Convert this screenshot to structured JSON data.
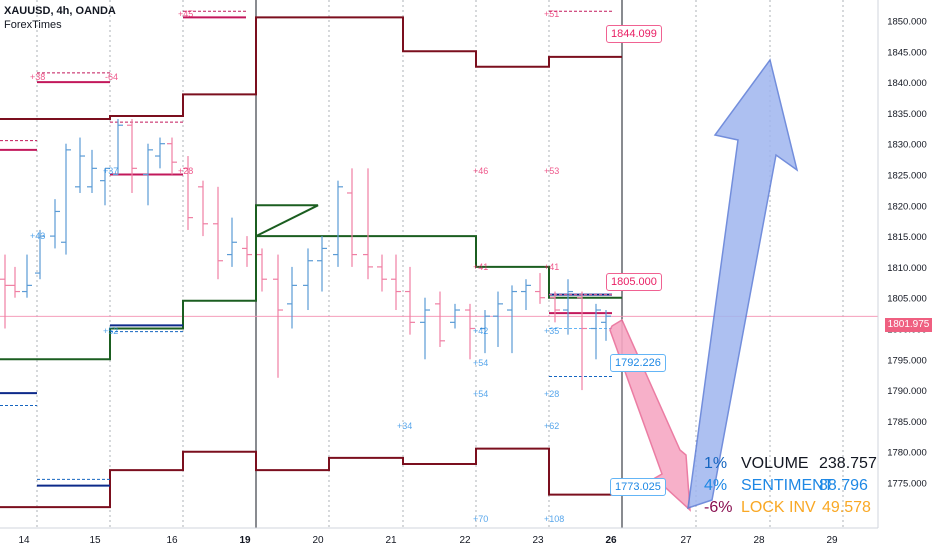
{
  "header": {
    "symbol_line": "XAUUSD, 4h, OANDA",
    "author": "ForexTimes"
  },
  "price_axis": {
    "ticks": [
      "1850.000",
      "1845.000",
      "1840.000",
      "1835.000",
      "1830.000",
      "1825.000",
      "1820.000",
      "1815.000",
      "1810.000",
      "1805.000",
      "1800.000",
      "1795.000",
      "1790.000",
      "1785.000",
      "1780.000",
      "1775.000"
    ],
    "current": "1801.975"
  },
  "time_axis": {
    "ticks": [
      "14",
      "15",
      "16",
      "19",
      "20",
      "21",
      "22",
      "23",
      "26",
      "27",
      "28",
      "29"
    ]
  },
  "tags": {
    "t1844": "1844.099",
    "t1805": "1805.000",
    "t1792": "1792.226",
    "t1773": "1773.025"
  },
  "stats": [
    {
      "pct": "1%",
      "label": "VOLUME",
      "value": "238.757",
      "pct_color": "#1565c0",
      "label_color": "#131722",
      "value_color": "#131722"
    },
    {
      "pct": "4%",
      "label": "SENTIMENT",
      "value": "88.796",
      "pct_color": "#1e88e5",
      "label_color": "#1e88e5",
      "value_color": "#1e88e5"
    },
    {
      "pct": "-6%",
      "label": "LOCK INV",
      "value": "49.578",
      "pct_color": "#880e4f",
      "label_color": "#f9a825",
      "value_color": "#f9a825"
    }
  ],
  "small_labels": [
    "+38",
    "-64",
    "+45",
    "+51",
    "+37",
    "+28",
    "+46",
    "+53",
    "+43",
    "+41",
    "+41",
    "+42",
    "+54",
    "+54",
    "+35",
    "+28",
    "+34",
    "+62",
    "+52",
    "+70",
    "+108"
  ],
  "chart_data": {
    "type": "line",
    "symbol": "XAUUSD",
    "timeframe": "4h",
    "x_ticks": [
      "14",
      "15",
      "16",
      "19",
      "20",
      "21",
      "22",
      "23",
      "26",
      "27",
      "28",
      "29"
    ],
    "y_range": [
      1772,
      1852
    ],
    "current_price": 1801.975,
    "levels_resistance_red": [
      {
        "from": "14",
        "to": "15",
        "y": 1834.0
      },
      {
        "from": "15",
        "to": "16",
        "y": 1834.5
      },
      {
        "from": "16",
        "to": "19",
        "y": 1838.0
      },
      {
        "from": "19",
        "to": "21",
        "y": 1850.5
      },
      {
        "from": "21",
        "to": "22",
        "y": 1845.0
      },
      {
        "from": "22",
        "to": "23",
        "y": 1842.5
      },
      {
        "from": "23",
        "to": "26",
        "y": 1844.099
      }
    ],
    "levels_pivot_green": [
      {
        "from": "14",
        "to": "15",
        "y": 1795.0
      },
      {
        "from": "15",
        "to": "16",
        "y": 1800.0
      },
      {
        "from": "16",
        "to": "19",
        "y": 1804.5
      },
      {
        "from": "19",
        "to": "19",
        "y": 1820.0
      },
      {
        "from": "19",
        "to": "22",
        "y": 1815.0
      },
      {
        "from": "22",
        "to": "23",
        "y": 1810.0
      },
      {
        "from": "23",
        "to": "26",
        "y": 1805.0
      }
    ],
    "levels_support_red": [
      {
        "from": "14",
        "to": "15",
        "y": 1771.0
      },
      {
        "from": "15",
        "to": "16",
        "y": 1777.0
      },
      {
        "from": "16",
        "to": "19",
        "y": 1780.0
      },
      {
        "from": "19",
        "to": "20",
        "y": 1777.0
      },
      {
        "from": "20",
        "to": "21",
        "y": 1779.0
      },
      {
        "from": "21",
        "to": "22",
        "y": 1778.0
      },
      {
        "from": "22",
        "to": "23",
        "y": 1780.5
      },
      {
        "from": "23",
        "to": "26",
        "y": 1773.025
      }
    ],
    "annotations": [
      {
        "label": "1844.099",
        "y": 1844.099
      },
      {
        "label": "1805.000",
        "y": 1805.0
      },
      {
        "label": "1792.226",
        "y": 1792.226
      },
      {
        "label": "1773.025",
        "y": 1773.025
      }
    ],
    "arrows": [
      {
        "direction": "down",
        "from_y": 1800.5,
        "to_y": 1774.0
      },
      {
        "direction": "up",
        "from_y": 1774.0,
        "to_y": 1843.0
      }
    ]
  }
}
